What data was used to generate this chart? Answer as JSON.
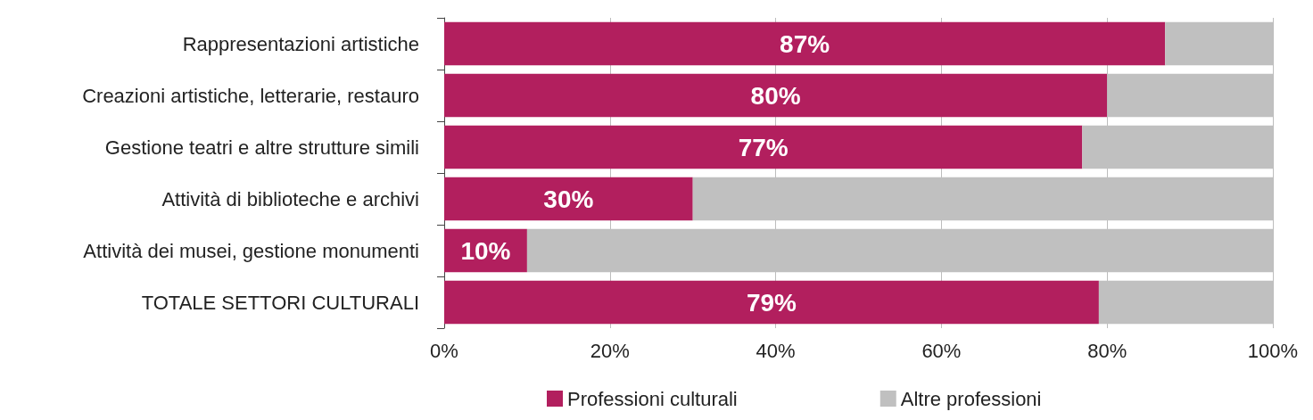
{
  "chart_data": {
    "type": "bar",
    "orientation": "horizontal",
    "stacked": true,
    "categories": [
      "Rappresentazioni artistiche",
      "Creazioni artistiche, letterarie, restauro",
      "Gestione teatri e altre strutture simili",
      "Attività di biblioteche e archivi",
      "Attività dei musei, gestione monumenti",
      "TOTALE SETTORI CULTURALI"
    ],
    "series": [
      {
        "name": "Professioni culturali",
        "color": "#b21f5e",
        "values": [
          87,
          80,
          77,
          30,
          10,
          79
        ],
        "value_labels": [
          "87%",
          "80%",
          "77%",
          "30%",
          "10%",
          "79%"
        ]
      },
      {
        "name": "Altre professioni",
        "color": "#c0c0c0",
        "values": [
          13,
          20,
          23,
          70,
          90,
          21
        ]
      }
    ],
    "xlim": [
      0,
      100
    ],
    "xticks": [
      {
        "value": 0,
        "label": "0%"
      },
      {
        "value": 20,
        "label": "20%"
      },
      {
        "value": 40,
        "label": "40%"
      },
      {
        "value": 60,
        "label": "60%"
      },
      {
        "value": 80,
        "label": "80%"
      },
      {
        "value": 100,
        "label": "100%"
      }
    ],
    "grid": "x",
    "legend": "bottom"
  }
}
